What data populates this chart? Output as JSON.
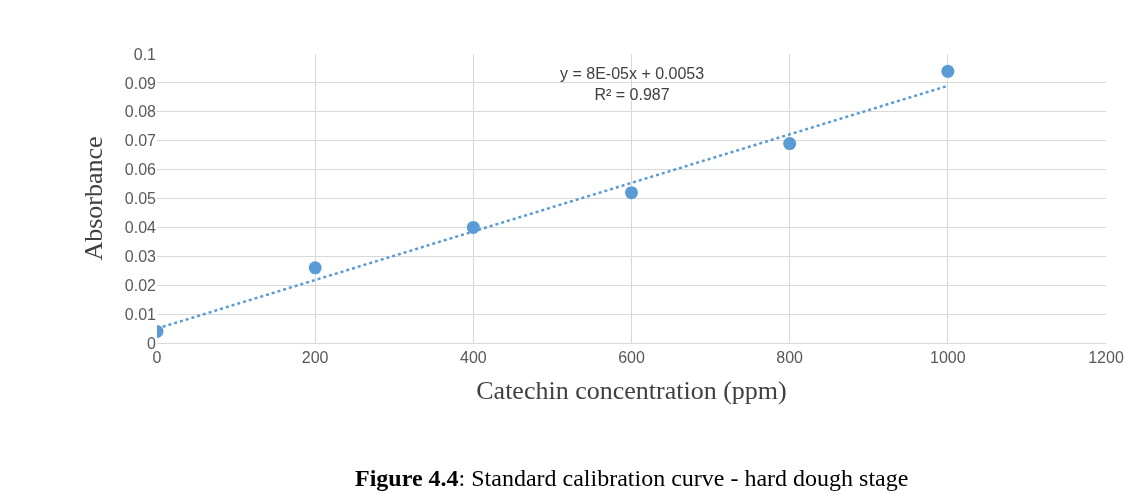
{
  "chart_data": {
    "type": "scatter",
    "xlabel": "Catechin concentration (ppm)",
    "ylabel": "Absorbance",
    "x": [
      0,
      200,
      400,
      600,
      800,
      1000
    ],
    "series": [
      {
        "color": "#5b9bd5",
        "values": [
          0.004,
          0.026,
          0.04,
          0.052,
          0.069,
          0.094
        ],
        "marker": "circle"
      },
      {
        "type": "line",
        "color": "#5b9bd5",
        "x": [
          0,
          1000
        ],
        "values": [
          0.005,
          0.089
        ],
        "line_style": "dotted"
      }
    ],
    "xlim": [
      0,
      1200
    ],
    "xticks": [
      0,
      200,
      400,
      600,
      800,
      1000,
      1200
    ],
    "ylim": [
      0,
      0.1
    ],
    "yticks": [
      0,
      0.01,
      0.02,
      0.03,
      0.04,
      0.05,
      0.06,
      0.07,
      0.08,
      0.09,
      0.1
    ],
    "grid": true,
    "annotations": [
      "y = 8E-05x + 0.0053\nR² = 0.987",
      "**Figure 4.4**: Standard calibration curve - hard dough stage"
    ]
  }
}
